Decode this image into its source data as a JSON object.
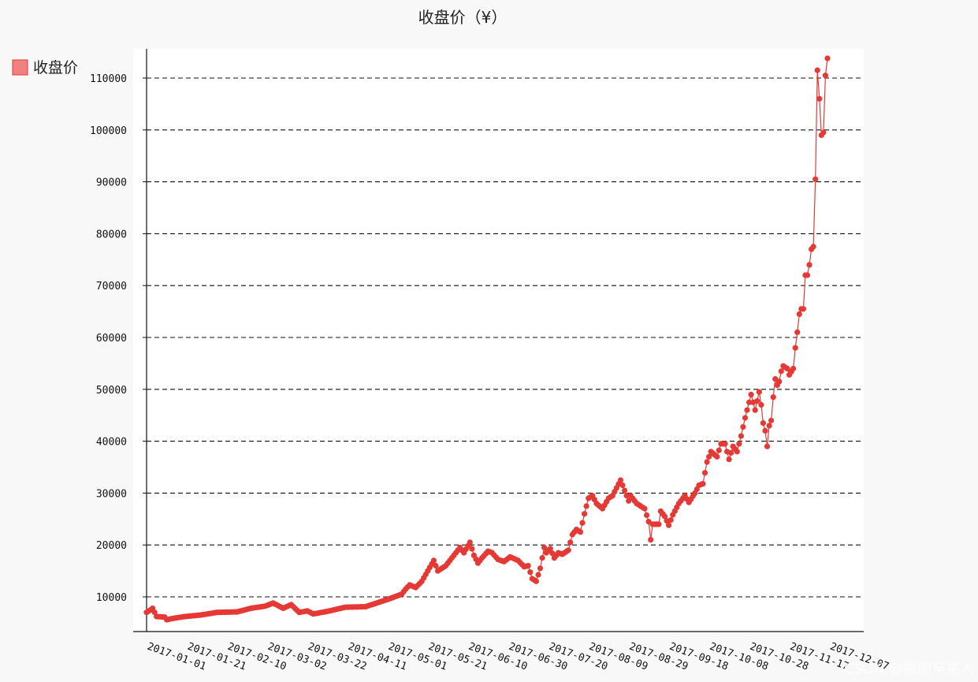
{
  "chart_data": {
    "type": "line",
    "title": "收盘价（¥）",
    "xlabel": "",
    "ylabel": "",
    "grid": "horizontal-dashed",
    "legend_position": "top-left",
    "color": "#e53935",
    "legend_color": "#f28080",
    "xlim": [
      "2017-01-01",
      "2017-12-17"
    ],
    "ylim": [
      0,
      116000
    ],
    "y_ticks": [
      10000,
      20000,
      30000,
      40000,
      50000,
      60000,
      70000,
      80000,
      90000,
      100000,
      110000
    ],
    "x_tick_labels": [
      "2017-01-01",
      "2017-01-21",
      "2017-02-10",
      "2017-03-02",
      "2017-03-22",
      "2017-04-11",
      "2017-05-01",
      "2017-05-21",
      "2017-06-10",
      "2017-06-30",
      "2017-07-20",
      "2017-08-09",
      "2017-08-29",
      "2017-09-18",
      "2017-10-08",
      "2017-10-28",
      "2017-11-17",
      "2017-12-07"
    ],
    "series": [
      {
        "name": "收盘价",
        "anchors": [
          [
            "2017-01-01",
            7000
          ],
          [
            "2017-01-03",
            7500
          ],
          [
            "2017-01-04",
            7800
          ],
          [
            "2017-01-06",
            6200
          ],
          [
            "2017-01-10",
            6100
          ],
          [
            "2017-01-11",
            5600
          ],
          [
            "2017-01-15",
            5900
          ],
          [
            "2017-01-20",
            6200
          ],
          [
            "2017-01-28",
            6500
          ],
          [
            "2017-02-05",
            7000
          ],
          [
            "2017-02-15",
            7100
          ],
          [
            "2017-02-22",
            7800
          ],
          [
            "2017-03-01",
            8200
          ],
          [
            "2017-03-05",
            8800
          ],
          [
            "2017-03-10",
            7800
          ],
          [
            "2017-03-14",
            8500
          ],
          [
            "2017-03-18",
            7000
          ],
          [
            "2017-03-22",
            7300
          ],
          [
            "2017-03-25",
            6700
          ],
          [
            "2017-04-01",
            7200
          ],
          [
            "2017-04-10",
            8000
          ],
          [
            "2017-04-20",
            8100
          ],
          [
            "2017-05-01",
            9500
          ],
          [
            "2017-05-08",
            10500
          ],
          [
            "2017-05-10",
            11500
          ],
          [
            "2017-05-12",
            12300
          ],
          [
            "2017-05-15",
            11800
          ],
          [
            "2017-05-18",
            13000
          ],
          [
            "2017-05-21",
            15000
          ],
          [
            "2017-05-24",
            17000
          ],
          [
            "2017-05-26",
            15000
          ],
          [
            "2017-05-30",
            16000
          ],
          [
            "2017-06-02",
            17500
          ],
          [
            "2017-06-06",
            19500
          ],
          [
            "2017-06-08",
            18500
          ],
          [
            "2017-06-11",
            20500
          ],
          [
            "2017-06-13",
            18000
          ],
          [
            "2017-06-15",
            16500
          ],
          [
            "2017-06-17",
            17500
          ],
          [
            "2017-06-20",
            18800
          ],
          [
            "2017-06-22",
            18500
          ],
          [
            "2017-06-25",
            17200
          ],
          [
            "2017-06-28",
            16800
          ],
          [
            "2017-07-01",
            17700
          ],
          [
            "2017-07-05",
            17000
          ],
          [
            "2017-07-08",
            15800
          ],
          [
            "2017-07-10",
            16000
          ],
          [
            "2017-07-12",
            13500
          ],
          [
            "2017-07-14",
            13000
          ],
          [
            "2017-07-16",
            15500
          ],
          [
            "2017-07-18",
            19500
          ],
          [
            "2017-07-19",
            18500
          ],
          [
            "2017-07-21",
            19300
          ],
          [
            "2017-07-23",
            17500
          ],
          [
            "2017-07-25",
            18500
          ],
          [
            "2017-07-27",
            18200
          ],
          [
            "2017-07-30",
            19000
          ],
          [
            "2017-08-01",
            22000
          ],
          [
            "2017-08-03",
            23000
          ],
          [
            "2017-08-05",
            22500
          ],
          [
            "2017-08-07",
            26000
          ],
          [
            "2017-08-09",
            29000
          ],
          [
            "2017-08-11",
            29500
          ],
          [
            "2017-08-13",
            28000
          ],
          [
            "2017-08-16",
            27000
          ],
          [
            "2017-08-19",
            29000
          ],
          [
            "2017-08-21",
            29500
          ],
          [
            "2017-08-23",
            31000
          ],
          [
            "2017-08-25",
            32500
          ],
          [
            "2017-08-27",
            30500
          ],
          [
            "2017-08-29",
            28500
          ],
          [
            "2017-08-30",
            29500
          ],
          [
            "2017-09-02",
            28000
          ],
          [
            "2017-09-06",
            27000
          ],
          [
            "2017-09-08",
            24500
          ],
          [
            "2017-09-09",
            21000
          ],
          [
            "2017-09-10",
            24000
          ],
          [
            "2017-09-13",
            24000
          ],
          [
            "2017-09-14",
            26500
          ],
          [
            "2017-09-16",
            25500
          ],
          [
            "2017-09-18",
            23800
          ],
          [
            "2017-09-20",
            25800
          ],
          [
            "2017-09-23",
            28000
          ],
          [
            "2017-09-26",
            29500
          ],
          [
            "2017-09-28",
            28200
          ],
          [
            "2017-10-01",
            30000
          ],
          [
            "2017-10-03",
            31500
          ],
          [
            "2017-10-05",
            31800
          ],
          [
            "2017-10-07",
            36000
          ],
          [
            "2017-10-09",
            38000
          ],
          [
            "2017-10-12",
            37000
          ],
          [
            "2017-10-14",
            39500
          ],
          [
            "2017-10-16",
            39500
          ],
          [
            "2017-10-18",
            36500
          ],
          [
            "2017-10-20",
            39000
          ],
          [
            "2017-10-22",
            38000
          ],
          [
            "2017-10-24",
            41000
          ],
          [
            "2017-10-26",
            44500
          ],
          [
            "2017-10-28",
            47500
          ],
          [
            "2017-10-29",
            49000
          ],
          [
            "2017-10-31",
            46000
          ],
          [
            "2017-11-02",
            49500
          ],
          [
            "2017-11-03",
            47000
          ],
          [
            "2017-11-04",
            43500
          ],
          [
            "2017-11-05",
            42000
          ],
          [
            "2017-11-06",
            39000
          ],
          [
            "2017-11-07",
            43000
          ],
          [
            "2017-11-08",
            44000
          ],
          [
            "2017-11-09",
            48500
          ],
          [
            "2017-11-10",
            52000
          ],
          [
            "2017-11-11",
            50800
          ],
          [
            "2017-11-12",
            51500
          ],
          [
            "2017-11-13",
            53500
          ],
          [
            "2017-11-14",
            54500
          ],
          [
            "2017-11-16",
            54000
          ],
          [
            "2017-11-17",
            52800
          ],
          [
            "2017-11-19",
            54000
          ],
          [
            "2017-11-20",
            58000
          ],
          [
            "2017-11-21",
            61000
          ],
          [
            "2017-11-22",
            64500
          ],
          [
            "2017-11-23",
            65500
          ],
          [
            "2017-11-24",
            65500
          ],
          [
            "2017-11-25",
            72000
          ],
          [
            "2017-11-26",
            72000
          ],
          [
            "2017-11-27",
            74000
          ],
          [
            "2017-11-28",
            77000
          ],
          [
            "2017-11-29",
            77500
          ],
          [
            "2017-11-30",
            90500
          ],
          [
            "2017-12-01",
            111500
          ],
          [
            "2017-12-02",
            106000
          ],
          [
            "2017-12-03",
            99000
          ],
          [
            "2017-12-04",
            99500
          ],
          [
            "2017-12-05",
            110500
          ],
          [
            "2017-12-06",
            113800
          ]
        ]
      }
    ],
    "watermark": "CSDN @星图辛某人"
  }
}
